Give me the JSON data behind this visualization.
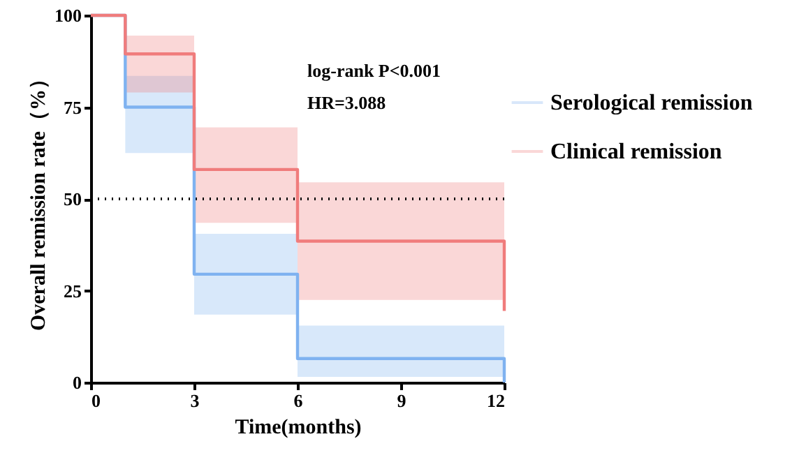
{
  "chart_data": {
    "type": "step",
    "xlabel": "Time(months)",
    "ylabel": "Overall remission rate（%）",
    "x": [
      0,
      1,
      3,
      6,
      12,
      12
    ],
    "series": [
      {
        "name": "Serological remission",
        "color": "#7fb2f0",
        "values": [
          100,
          75,
          29.5,
          6.5,
          6.5,
          0
        ],
        "lower": [
          null,
          62.5,
          18.5,
          1.5,
          1.5,
          null
        ],
        "upper": [
          null,
          83.5,
          40.5,
          15.5,
          15.5,
          null
        ]
      },
      {
        "name": "Clinical remission",
        "color": "#f07c7c",
        "values": [
          100,
          89.5,
          58,
          38.5,
          38.5,
          19.5
        ],
        "lower": [
          null,
          79,
          43.5,
          22.5,
          22.5,
          null
        ],
        "upper": [
          null,
          94.5,
          69.5,
          54.5,
          54.5,
          null
        ]
      }
    ],
    "xlim": [
      0,
      12
    ],
    "xticks": [
      0,
      3,
      6,
      9,
      12
    ],
    "ylim": [
      0,
      100
    ],
    "yticks": [
      0,
      25,
      50,
      75,
      100
    ],
    "ref_lines": [
      {
        "axis": "y",
        "value": 50,
        "line_style": "dotted",
        "color": "#000000"
      }
    ],
    "annotations": [
      "log-rank  P<0.001",
      "HR=3.088"
    ],
    "legend": "right",
    "line_style": "solid"
  }
}
